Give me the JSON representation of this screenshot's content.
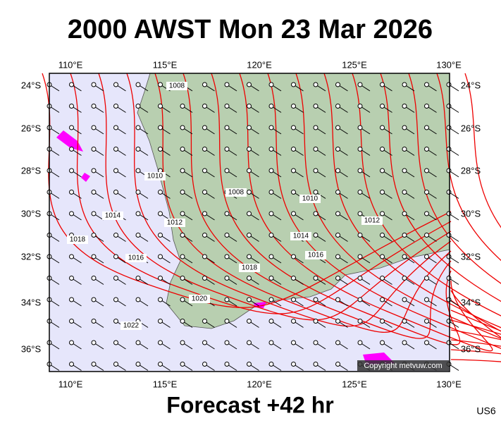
{
  "header": {
    "title": "2000 AWST Mon 23 Mar 2026"
  },
  "map": {
    "lon_labels": [
      "110°E",
      "115°E",
      "120°E",
      "125°E",
      "130°E"
    ],
    "lat_labels": [
      "24°S",
      "26°S",
      "28°S",
      "30°S",
      "32°S",
      "34°S",
      "36°S"
    ],
    "isobar_labels": [
      "1008",
      "1010",
      "1008",
      "1010",
      "1012",
      "1012",
      "1014",
      "1014",
      "1016",
      "1016",
      "1018",
      "1018",
      "1020",
      "1022"
    ],
    "copyright": "Copyright metvuw.com"
  },
  "footer": {
    "forecast": "Forecast +42 hr",
    "model": "US6"
  }
}
